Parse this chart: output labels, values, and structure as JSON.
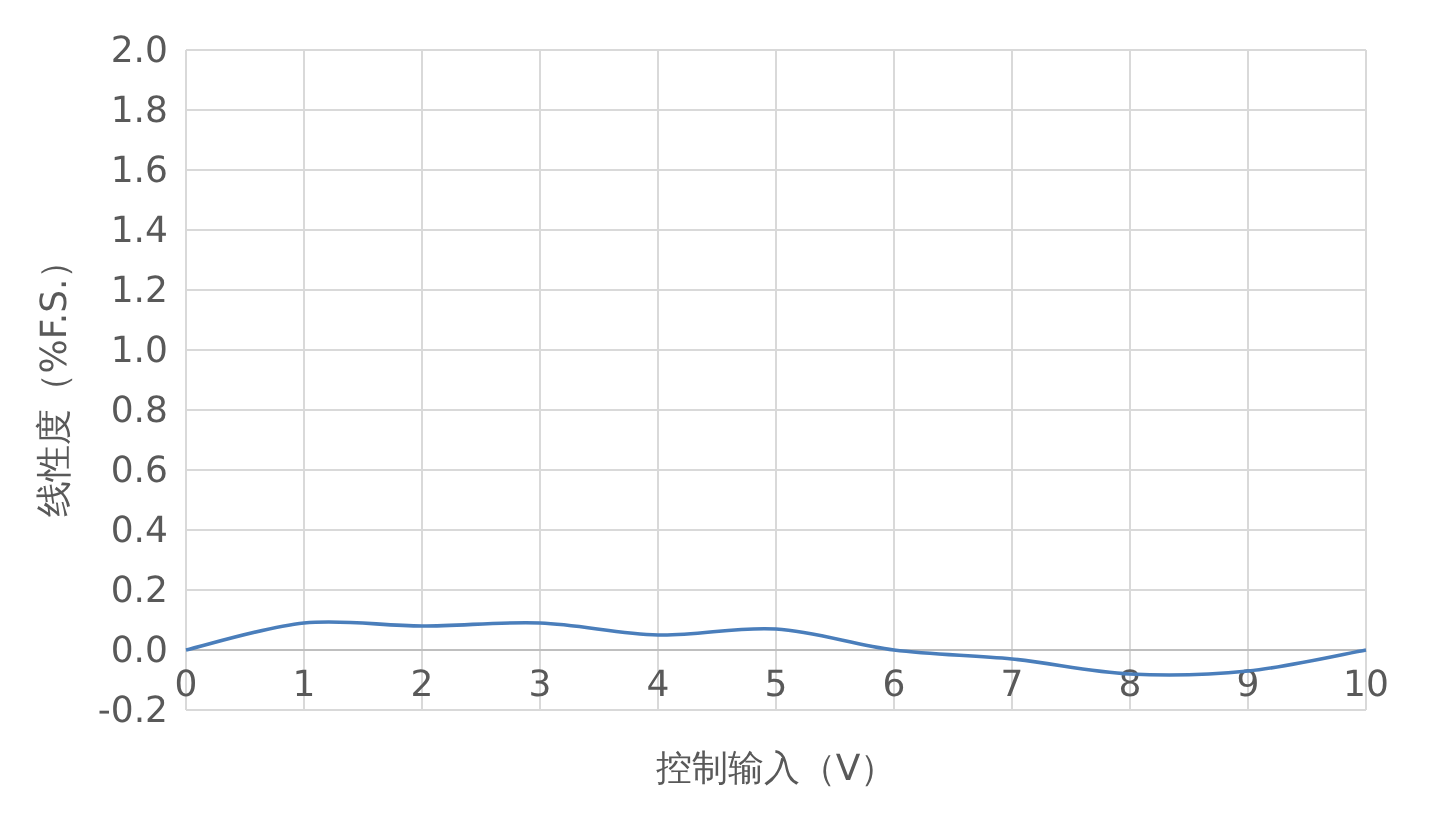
{
  "chart_data": {
    "type": "line",
    "xlabel": "控制输入（V）",
    "ylabel": "线性度（%F.S.）",
    "x": [
      0,
      1,
      2,
      3,
      4,
      5,
      6,
      7,
      8,
      9,
      10
    ],
    "series": [
      {
        "color": "#4a7ebb",
        "values": [
          0,
          0.09,
          0.08,
          0.09,
          0.05,
          0.07,
          0.0,
          -0.03,
          -0.08,
          -0.07,
          0
        ]
      }
    ],
    "xlim": [
      0,
      10
    ],
    "xticks": [
      0,
      1,
      2,
      3,
      4,
      5,
      6,
      7,
      8,
      9,
      10
    ],
    "ylim": [
      -0.2,
      2.0
    ],
    "yticks": [
      {
        "value": -0.2,
        "label": "-0.2"
      },
      {
        "value": 0,
        "label": "0.0"
      },
      {
        "value": 0.2,
        "label": "0.2"
      },
      {
        "value": 0.4,
        "label": "0.4"
      },
      {
        "value": 0.6,
        "label": "0.6"
      },
      {
        "value": 0.8,
        "label": "0.8"
      },
      {
        "value": 1.0,
        "label": "1.0"
      },
      {
        "value": 1.2,
        "label": "1.2"
      },
      {
        "value": 1.4,
        "label": "1.4"
      },
      {
        "value": 1.6,
        "label": "1.6"
      },
      {
        "value": 1.8,
        "label": "1.8"
      },
      {
        "value": 2.0,
        "label": "2.0"
      }
    ],
    "grid": true
  }
}
